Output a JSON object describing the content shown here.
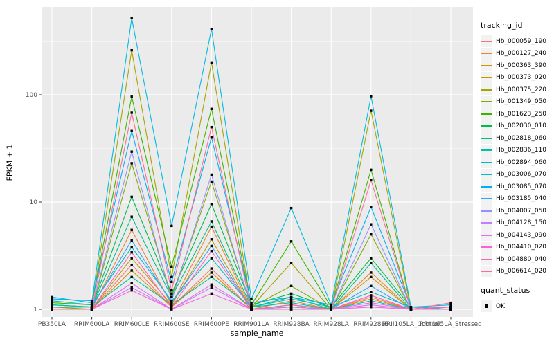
{
  "chart_data": {
    "type": "line",
    "title": "",
    "xlabel": "sample_name",
    "ylabel": "FPKM + 1",
    "yscale": "log10",
    "yticks": [
      1,
      10,
      100
    ],
    "ylim": [
      0.9,
      650
    ],
    "grid": "white major and minor gridlines on gray panel",
    "legend_position": "right",
    "point_shape": "filled-square-black",
    "categories": [
      "PB350LA",
      "RRIM600LA",
      "RRIM600LE",
      "RRIM600SE",
      "RRIM600PE",
      "RRIM901LA",
      "RRIM928BA",
      "RRIM928LA",
      "RRIM928LE",
      "RRII105LA_Control",
      "RRII105LA_Stressed"
    ],
    "series": [
      {
        "name": "Hb_000059_190",
        "color": "#F8766D",
        "values": [
          1.0,
          1.0,
          2.6,
          1.05,
          2.4,
          1.0,
          1.05,
          1.0,
          1.3,
          1.0,
          1.0
        ]
      },
      {
        "name": "Hb_000127_240",
        "color": "#EA8331",
        "values": [
          1.0,
          1.0,
          5.5,
          1.1,
          5.9,
          1.0,
          1.2,
          1.0,
          2.2,
          1.0,
          1.0
        ]
      },
      {
        "name": "Hb_000363_390",
        "color": "#D89000",
        "values": [
          1.0,
          1.0,
          2.3,
          1.05,
          2.2,
          1.0,
          1.05,
          1.0,
          1.25,
          1.0,
          1.0
        ]
      },
      {
        "name": "Hb_000373_020",
        "color": "#C09B00",
        "values": [
          1.0,
          1.0,
          3.0,
          1.1,
          4.5,
          1.0,
          1.1,
          1.0,
          2.0,
          1.0,
          1.0
        ]
      },
      {
        "name": "Hb_000375_220",
        "color": "#A3A500",
        "values": [
          1.05,
          1.05,
          260,
          2.0,
          200,
          1.05,
          2.7,
          1.0,
          71,
          1.0,
          1.0
        ]
      },
      {
        "name": "Hb_001349_050",
        "color": "#7CAE00",
        "values": [
          1.05,
          1.0,
          23,
          1.3,
          15.5,
          1.05,
          1.65,
          1.0,
          5.0,
          1.0,
          1.0
        ]
      },
      {
        "name": "Hb_001623_250",
        "color": "#39B600",
        "values": [
          1.15,
          1.1,
          96,
          2.5,
          74,
          1.1,
          4.3,
          1.05,
          20,
          1.0,
          1.05
        ]
      },
      {
        "name": "Hb_002030_010",
        "color": "#00BB4E",
        "values": [
          1.1,
          1.05,
          11.2,
          1.4,
          9.6,
          1.1,
          1.4,
          1.05,
          3.0,
          1.05,
          1.05
        ]
      },
      {
        "name": "Hb_002818_060",
        "color": "#00C081",
        "values": [
          1.1,
          1.05,
          7.3,
          1.3,
          6.6,
          1.05,
          1.3,
          1.0,
          2.7,
          1.0,
          1.0
        ]
      },
      {
        "name": "Hb_002836_110",
        "color": "#00C0A7",
        "values": [
          1.1,
          1.05,
          2.0,
          1.1,
          2.0,
          1.05,
          1.15,
          1.0,
          1.2,
          1.0,
          1.0
        ]
      },
      {
        "name": "Hb_002894_060",
        "color": "#00BFC4",
        "values": [
          1.2,
          1.1,
          3.8,
          1.2,
          3.0,
          1.05,
          1.25,
          1.05,
          1.45,
          1.05,
          1.0
        ]
      },
      {
        "name": "Hb_003006_070",
        "color": "#00BAE0",
        "values": [
          1.3,
          1.15,
          520,
          6.0,
          410,
          1.25,
          8.8,
          1.1,
          97,
          1.05,
          1.1
        ]
      },
      {
        "name": "Hb_003085_070",
        "color": "#00B0F6",
        "values": [
          1.25,
          1.2,
          46,
          1.8,
          40,
          1.15,
          1.3,
          1.1,
          9.0,
          1.05,
          1.05
        ]
      },
      {
        "name": "Hb_003185_040",
        "color": "#35A2FF",
        "values": [
          1.05,
          1.05,
          4.4,
          1.15,
          3.9,
          1.0,
          1.1,
          1.0,
          1.65,
          1.0,
          1.0
        ]
      },
      {
        "name": "Hb_004007_050",
        "color": "#9590FF",
        "values": [
          1.0,
          1.0,
          29.5,
          1.2,
          18,
          1.0,
          1.05,
          1.0,
          6.2,
          1.0,
          1.0
        ]
      },
      {
        "name": "Hb_004128_150",
        "color": "#C77CFF",
        "values": [
          1.0,
          1.0,
          1.6,
          1.0,
          1.6,
          1.0,
          1.0,
          1.0,
          1.1,
          1.0,
          1.0
        ]
      },
      {
        "name": "Hb_004143_090",
        "color": "#E76BF3",
        "values": [
          1.0,
          1.0,
          1.75,
          1.0,
          1.7,
          1.0,
          1.0,
          1.0,
          1.15,
          1.0,
          1.0
        ]
      },
      {
        "name": "Hb_004410_020",
        "color": "#FA62DB",
        "values": [
          1.0,
          1.0,
          1.5,
          1.0,
          1.4,
          1.0,
          1.0,
          1.0,
          1.05,
          1.0,
          1.0
        ]
      },
      {
        "name": "Hb_004880_040",
        "color": "#FF62BC",
        "values": [
          1.0,
          1.0,
          3.4,
          1.05,
          3.5,
          1.0,
          1.0,
          1.0,
          1.35,
          1.0,
          1.05
        ]
      },
      {
        "name": "Hb_006614_020",
        "color": "#FF6A98",
        "values": [
          1.0,
          1.0,
          68,
          1.5,
          50,
          1.0,
          1.1,
          1.0,
          16,
          1.0,
          1.15
        ]
      }
    ]
  },
  "legend": {
    "tracking_title": "tracking_id",
    "quant_title": "quant_status",
    "quant_value": "OK"
  },
  "style": {
    "panel_bg": "#EBEBEB",
    "grid_major": "#FFFFFF",
    "grid_minor": "#F7F7F7",
    "axis_text": "#4D4D4D",
    "tick_color": "#333333",
    "point_color": "#000000"
  }
}
